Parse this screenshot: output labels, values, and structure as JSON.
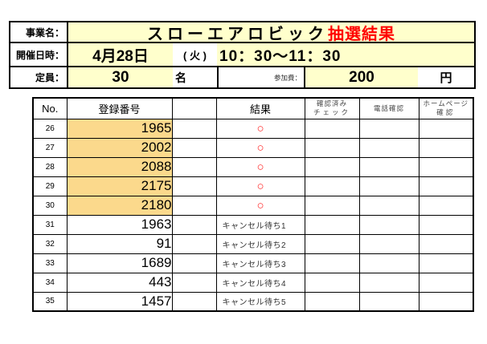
{
  "colors": {
    "pale_yellow": "#FFFFCC",
    "highlight_orange": "#FBD98C",
    "title_red": "#FF0000",
    "result_red": "#FF2222"
  },
  "info_panel": {
    "business": {
      "label": "事業名：",
      "value_main": "スローエアロビック",
      "value_accent": "抽選結果"
    },
    "schedule": {
      "label": "開催日時：",
      "date": "4月28日",
      "day": "( 火 )",
      "time": "10：30～11：30"
    },
    "capacity": {
      "label": "定員：",
      "value": "30",
      "unit": "名"
    },
    "fee": {
      "label": "参加費：",
      "value": "200",
      "unit": "円"
    }
  },
  "results_table": {
    "headers": {
      "no": "No.",
      "registration": "登録番号",
      "spacer": "",
      "result": "結果",
      "confirm_check_line1": "確認済み",
      "confirm_check_line2": "チェック",
      "phone_confirm": "電話確認",
      "homepage_line1": "ホームページ",
      "homepage_line2": "確認"
    },
    "rows": [
      {
        "no": "26",
        "registration": "1965",
        "result": "○",
        "status": "win"
      },
      {
        "no": "27",
        "registration": "2002",
        "result": "○",
        "status": "win"
      },
      {
        "no": "28",
        "registration": "2088",
        "result": "○",
        "status": "win"
      },
      {
        "no": "29",
        "registration": "2175",
        "result": "○",
        "status": "win"
      },
      {
        "no": "30",
        "registration": "2180",
        "result": "○",
        "status": "win"
      },
      {
        "no": "31",
        "registration": "1963",
        "result": "キャンセル待ち1",
        "status": "waitlist"
      },
      {
        "no": "32",
        "registration": "91",
        "result": "キャンセル待ち2",
        "status": "waitlist"
      },
      {
        "no": "33",
        "registration": "1689",
        "result": "キャンセル待ち3",
        "status": "waitlist"
      },
      {
        "no": "34",
        "registration": "443",
        "result": "キャンセル待ち4",
        "status": "waitlist"
      },
      {
        "no": "35",
        "registration": "1457",
        "result": "キャンセル待ち5",
        "status": "waitlist"
      }
    ]
  }
}
